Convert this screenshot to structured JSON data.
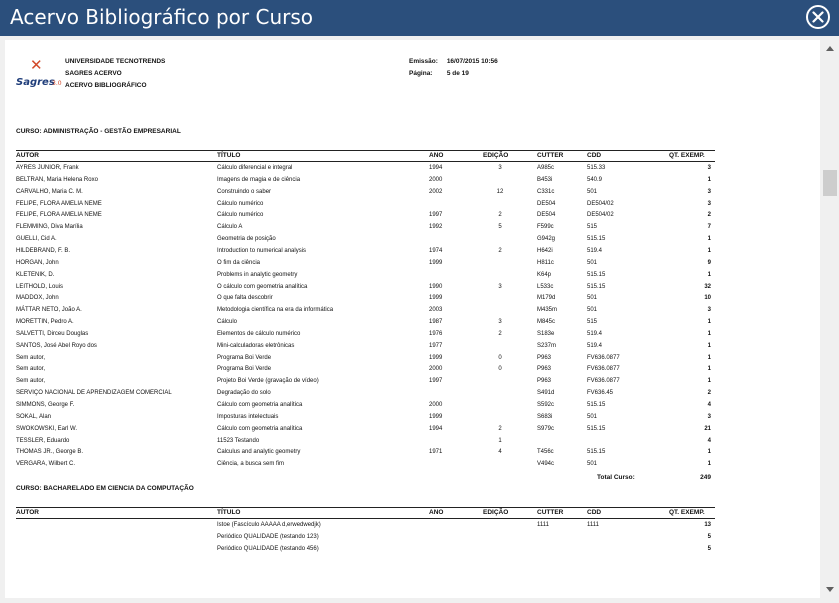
{
  "window": {
    "title": "Acervo Bibliográfico por Curso",
    "close_icon": "close-circle-icon"
  },
  "report": {
    "logo": {
      "brand": "Sagres",
      "version": "3.0"
    },
    "header_lines": [
      "UNIVERSIDADE TECNOTRENDS",
      "SAGRES ACERVO",
      "ACERVO BIBLIOGRÁFICO"
    ],
    "emissao_label": "Emissão:",
    "emissao_value": "16/07/2015 10:56",
    "pagina_label": "Página:",
    "pagina_value": "5 de 19",
    "columns": {
      "autor": "AUTOR",
      "titulo": "TÍTULO",
      "ano": "ANO",
      "edicao": "EDIÇÃO",
      "cutter": "CUTTER",
      "cdd": "CDD",
      "qt": "QT. EXEMP."
    },
    "sections": [
      {
        "curso": "CURSO: ADMINISTRAÇÃO - GESTÃO EMPRESARIAL",
        "rows": [
          [
            "AYRES JUNIOR, Frank",
            "Cálculo diferencial e integral",
            "1994",
            "3",
            "A985c",
            "515.33",
            "3"
          ],
          [
            "BELTRAN, Maria Helena Roxo",
            "Imagens de magia e de ciência",
            "2000",
            "",
            "B453i",
            "540.9",
            "1"
          ],
          [
            "CARVALHO, Maria C. M.",
            "Construindo o saber",
            "2002",
            "12",
            "C331c",
            "501",
            "3"
          ],
          [
            "FELIPE, FLORA AMELIA NEME",
            "Cálculo numérico",
            "",
            "",
            "DE504",
            "DE504/02",
            "3"
          ],
          [
            "FELIPE, FLORA AMELIA NEME",
            "Cálculo numérico",
            "1997",
            "2",
            "DE504",
            "DE504/02",
            "2"
          ],
          [
            "FLEMMING, Diva Marília",
            "Cálculo A",
            "1992",
            "5",
            "F599c",
            "515",
            "7"
          ],
          [
            "GUELLI, Cid A.",
            "Geometria de posição",
            "",
            "",
            "G942g",
            "515.15",
            "1"
          ],
          [
            "HILDEBRAND, F. B.",
            "Introduction to numerical analysis",
            "1974",
            "2",
            "H642i",
            "519.4",
            "1"
          ],
          [
            "HORGAN, John",
            "O fim da ciência",
            "1999",
            "",
            "H811c",
            "501",
            "9"
          ],
          [
            "KLETENIK, D.",
            "Problems in analytic geometry",
            "",
            "",
            "K64p",
            "515.15",
            "1"
          ],
          [
            "LEITHOLD, Louis",
            "O cálculo com geometria analítica",
            "1990",
            "3",
            "L533c",
            "515.15",
            "32"
          ],
          [
            "MADDOX, John",
            "O que falta descobrir",
            "1999",
            "",
            "M179d",
            "501",
            "10"
          ],
          [
            "MÁTTAR NETO, João A.",
            "Metodologia científica na era da informática",
            "2003",
            "",
            "M435m",
            "501",
            "3"
          ],
          [
            "MORETTIN, Pedro A.",
            "Cálculo",
            "1987",
            "3",
            "M845c",
            "515",
            "1"
          ],
          [
            "SALVETTI, Dirceu Douglas",
            "Elementos de cálculo numérico",
            "1976",
            "2",
            "S183e",
            "519.4",
            "1"
          ],
          [
            "SANTOS, José Abel Royo dos",
            "Mini-calculadoras eletrônicas",
            "1977",
            "",
            "S237m",
            "519.4",
            "1"
          ],
          [
            "Sem autor,",
            "Programa Boi Verde",
            "1999",
            "0",
            "P963",
            "FV636.0877",
            "1"
          ],
          [
            "Sem autor,",
            "Programa Boi Verde",
            "2000",
            "0",
            "P963",
            "FV636.0877",
            "1"
          ],
          [
            "Sem autor,",
            "Projeto Boi Verde (gravação de vídeo)",
            "1997",
            "",
            "P963",
            "FV636.0877",
            "1"
          ],
          [
            "SERVIÇO NACIONAL DE APRENDIZAGEM COMERCIAL",
            "Degradação do solo",
            "",
            "",
            "S491d",
            "FV636.45",
            "2"
          ],
          [
            "SIMMONS, George F.",
            "Cálculo com geometria analítica",
            "2000",
            "",
            "S592c",
            "515.15",
            "4"
          ],
          [
            "SOKAL, Alan",
            "Imposturas intelectuais",
            "1999",
            "",
            "S683i",
            "501",
            "3"
          ],
          [
            "SWOKOWSKI, Earl W.",
            "Cálculo com geometria analítica",
            "1994",
            "2",
            "S979c",
            "515.15",
            "21"
          ],
          [
            "TESSLER, Eduardo",
            "11523 Testando",
            "",
            "1",
            "",
            "",
            "4"
          ],
          [
            "THOMAS JR., George B.",
            "Calculus and analytic geometry",
            "1971",
            "4",
            "T456c",
            "515.15",
            "1"
          ],
          [
            "VERGARA, Wilbert C.",
            "Ciência, a busca sem fim",
            "",
            "",
            "V494c",
            "501",
            "1"
          ]
        ],
        "total_label": "Total Curso:",
        "total_value": "249"
      },
      {
        "curso": "CURSO: BACHARELADO EM CIENCIA DA COMPUTAÇÃO",
        "rows": [
          [
            "",
            "Istoe (Fascículo AAAAA d,erwedwedjk)",
            "",
            "",
            "1111",
            "1111",
            "13"
          ],
          [
            "",
            "Periódico QUALIDADE (testando 123)",
            "",
            "",
            "",
            "",
            "5"
          ],
          [
            "",
            "Periódico QUALIDADE (testando 456)",
            "",
            "",
            "",
            "",
            "5"
          ]
        ]
      }
    ]
  }
}
